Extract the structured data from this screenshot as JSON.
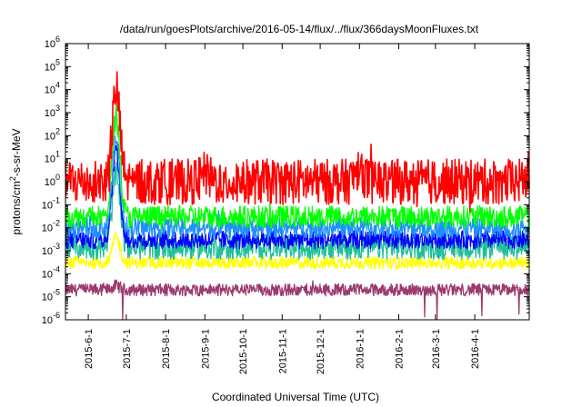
{
  "chart_data": {
    "type": "line",
    "title": "/data/run/goesPlots/archive/2016-05-14/flux/../flux/366daysMoonFluxes.txt",
    "xlabel": "Coordinated Universal Time (UTC)",
    "ylabel_parts": [
      "protons/cm",
      "2",
      "-s-sr-MeV"
    ],
    "yscale": "log",
    "ylim": [
      1e-06,
      1000000.0
    ],
    "xlim": [
      "2015-05-14",
      "2016-05-14"
    ],
    "x_ticks": [
      "2015-6-1",
      "2015-7-1",
      "2015-8-1",
      "2015-9-1",
      "2015-10-1",
      "2015-11-1",
      "2015-12-1",
      "2016-1-1",
      "2016-2-1",
      "2016-3-1",
      "2016-4-1"
    ],
    "y_ticks": [
      {
        "base": "10",
        "exp": "-6"
      },
      {
        "base": "10",
        "exp": "-5"
      },
      {
        "base": "10",
        "exp": "-4"
      },
      {
        "base": "10",
        "exp": "-3"
      },
      {
        "base": "10",
        "exp": "-2"
      },
      {
        "base": "10",
        "exp": "-1"
      },
      {
        "base": "10",
        "exp": "0"
      },
      {
        "base": "10",
        "exp": "1"
      },
      {
        "base": "10",
        "exp": "2"
      },
      {
        "base": "10",
        "exp": "3"
      },
      {
        "base": "10",
        "exp": "4"
      },
      {
        "base": "10",
        "exp": "5"
      },
      {
        "base": "10",
        "exp": "6"
      }
    ],
    "grid": false,
    "legend": "none",
    "series": [
      {
        "color": "#9b3a6e",
        "baseline": 2e-05,
        "x": [
          "2015-05-14",
          "2015-06-23",
          "2015-07-01",
          "2015-09-01",
          "2015-11-01",
          "2016-01-01",
          "2016-03-01",
          "2016-05-14"
        ],
        "y": [
          2e-05,
          3e-05,
          2e-05,
          2e-05,
          2e-05,
          2e-05,
          2e-05,
          2e-05
        ]
      },
      {
        "color": "#ffff00",
        "baseline": 0.0003,
        "x": [
          "2015-05-14",
          "2015-06-23",
          "2015-07-01",
          "2015-09-01",
          "2015-11-01",
          "2016-01-01",
          "2016-03-01",
          "2016-05-14"
        ],
        "y": [
          0.0003,
          0.004,
          0.0003,
          0.0003,
          0.0003,
          0.0003,
          0.0003,
          0.0003
        ]
      },
      {
        "color": "#1fbf9a",
        "baseline": 0.0015,
        "x": [
          "2015-05-14",
          "2015-06-23",
          "2015-07-01",
          "2015-09-01",
          "2015-11-01",
          "2016-01-01",
          "2016-03-01",
          "2016-05-14"
        ],
        "y": [
          0.0015,
          2.0,
          0.0015,
          0.0015,
          0.0015,
          0.0015,
          0.0015,
          0.0015
        ]
      },
      {
        "color": "#0000ff",
        "baseline": 0.003,
        "x": [
          "2015-05-14",
          "2015-06-23",
          "2015-07-01",
          "2015-09-01",
          "2015-11-01",
          "2016-01-01",
          "2016-03-01",
          "2016-05-14"
        ],
        "y": [
          0.003,
          30.0,
          0.003,
          0.003,
          0.003,
          0.003,
          0.003,
          0.003
        ]
      },
      {
        "color": "#1e90ff",
        "baseline": 0.01,
        "x": [
          "2015-05-14",
          "2015-06-23",
          "2015-07-01",
          "2015-09-01",
          "2015-11-01",
          "2016-01-01",
          "2016-03-01",
          "2016-05-14"
        ],
        "y": [
          0.01,
          60.0,
          0.01,
          0.01,
          0.01,
          0.01,
          0.01,
          0.01
        ]
      },
      {
        "color": "#00ff00",
        "baseline": 0.03,
        "x": [
          "2015-05-14",
          "2015-06-23",
          "2015-07-01",
          "2015-09-01",
          "2015-11-01",
          "2016-01-01",
          "2016-03-01",
          "2016-05-14"
        ],
        "y": [
          0.03,
          800.0,
          0.03,
          0.03,
          0.03,
          0.03,
          0.03,
          0.03
        ]
      },
      {
        "color": "#ff0000",
        "baseline": 1.0,
        "x": [
          "2015-05-14",
          "2015-06-23",
          "2015-07-01",
          "2015-09-01",
          "2015-11-01",
          "2016-01-01",
          "2016-03-01",
          "2016-05-14"
        ],
        "y": [
          1.0,
          10000.0,
          1.0,
          2.0,
          1.0,
          5.0,
          1.0,
          2.0
        ]
      }
    ]
  }
}
